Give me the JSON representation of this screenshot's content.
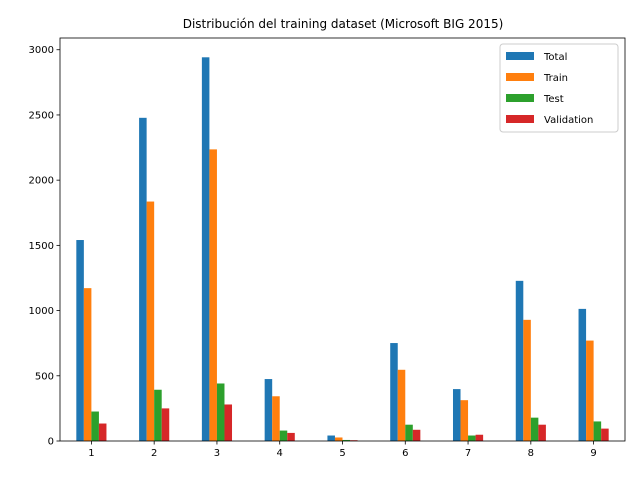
{
  "chart_data": {
    "type": "bar",
    "title": "Distribución del training dataset (Microsoft BIG 2015)",
    "xlabel": "",
    "ylabel": "",
    "categories": [
      "1",
      "2",
      "3",
      "4",
      "5",
      "6",
      "7",
      "8",
      "9"
    ],
    "ylim": [
      0,
      3090
    ],
    "yticks": [
      0,
      500,
      1000,
      1500,
      2000,
      2500,
      3000
    ],
    "grid": false,
    "legend_position": "top-right",
    "series": [
      {
        "name": "Total",
        "color": "#1f77b4",
        "values": [
          1541,
          2478,
          2942,
          475,
          42,
          751,
          398,
          1228,
          1013
        ]
      },
      {
        "name": "Train",
        "color": "#ff7f0e",
        "values": [
          1172,
          1836,
          2236,
          343,
          27,
          546,
          313,
          929,
          770
        ]
      },
      {
        "name": "Test",
        "color": "#2ca02c",
        "values": [
          226,
          393,
          441,
          80,
          8,
          125,
          42,
          179,
          150
        ]
      },
      {
        "name": "Validation",
        "color": "#d62728",
        "values": [
          134,
          250,
          280,
          62,
          6,
          86,
          48,
          125,
          95
        ]
      }
    ]
  }
}
